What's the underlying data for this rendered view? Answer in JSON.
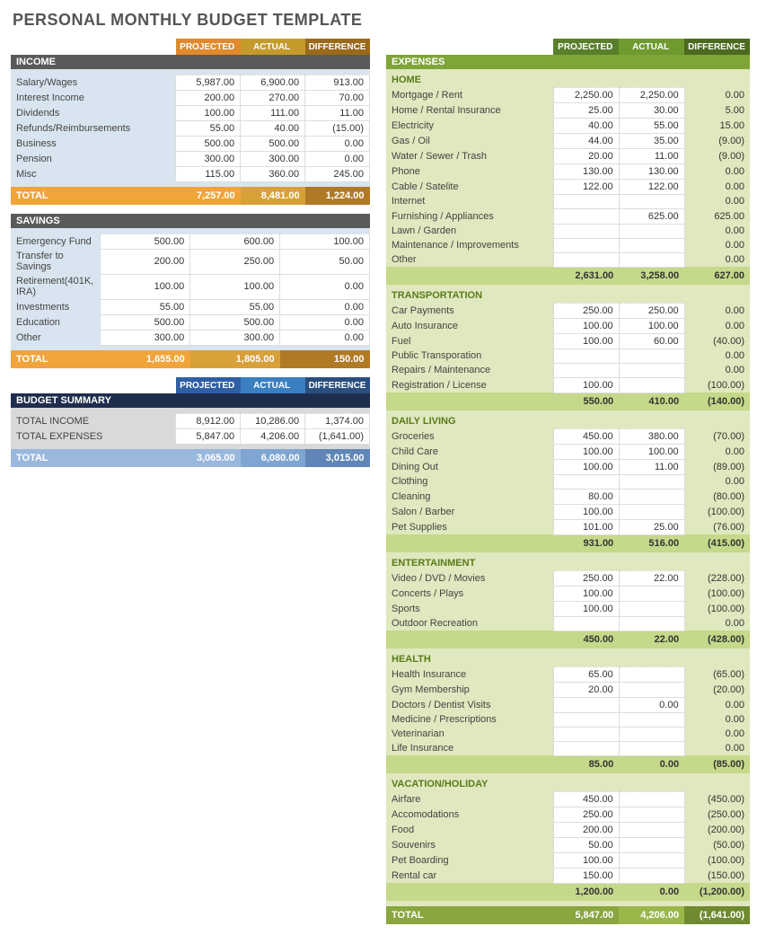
{
  "title": "PERSONAL MONTHLY BUDGET TEMPLATE",
  "headers": {
    "projected": "PROJECTED",
    "actual": "ACTUAL",
    "difference": "DIFFERENCE"
  },
  "totalLabel": "TOTAL",
  "colors": {
    "income_hdr": [
      "#e08a2c",
      "#c49a2a",
      "#9a6a1a"
    ],
    "income_bar": "#5a5a5a",
    "income_body": "#d8e4ef",
    "income_total": [
      "#f0a43a",
      "#d8a038",
      "#b07a25"
    ],
    "savings_bar": "#5a5a5a",
    "savings_body": "#d8e4ef",
    "savings_total": [
      "#f0a43a",
      "#d8a038",
      "#b07a25"
    ],
    "summary_hdr": [
      "#2f5fa3",
      "#3a7fbf",
      "#2a4f7f"
    ],
    "summary_bar": "#1f2d4d",
    "summary_body": "#d9d9d9",
    "summary_total": [
      "#9ab7dd",
      "#7fa6d2",
      "#5f86b6"
    ],
    "exp_hdr": [
      "#5a7f2a",
      "#6f9a2f",
      "#4a6a1f"
    ],
    "exp_bar": "#7fa437",
    "exp_body": "#dfe8be",
    "exp_subtotal": "#c5d98a",
    "exp_total": [
      "#8aa63f",
      "#9ab74a",
      "#6f8a2f"
    ]
  },
  "income": {
    "name": "INCOME",
    "rows": [
      {
        "label": "Salary/Wages",
        "p": 5987,
        "a": 6900,
        "d": 913
      },
      {
        "label": "Interest Income",
        "p": 200,
        "a": 270,
        "d": 70
      },
      {
        "label": "Dividends",
        "p": 100,
        "a": 111,
        "d": 11
      },
      {
        "label": "Refunds/Reimbursements",
        "p": 55,
        "a": 40,
        "d": -15
      },
      {
        "label": "Business",
        "p": 500,
        "a": 500,
        "d": 0
      },
      {
        "label": "Pension",
        "p": 300,
        "a": 300,
        "d": 0
      },
      {
        "label": "Misc",
        "p": 115,
        "a": 360,
        "d": 245
      }
    ],
    "total": {
      "p": 7257,
      "a": 8481,
      "d": 1224
    }
  },
  "savings": {
    "name": "SAVINGS",
    "rows": [
      {
        "label": "Emergency Fund",
        "p": 500,
        "a": 600,
        "d": 100
      },
      {
        "label": "Transfer to Savings",
        "p": 200,
        "a": 250,
        "d": 50
      },
      {
        "label": "Retirement(401K, IRA)",
        "p": 100,
        "a": 100,
        "d": 0
      },
      {
        "label": "Investments",
        "p": 55,
        "a": 55,
        "d": 0
      },
      {
        "label": "Education",
        "p": 500,
        "a": 500,
        "d": 0
      },
      {
        "label": "Other",
        "p": 300,
        "a": 300,
        "d": 0
      }
    ],
    "total": {
      "p": 1655,
      "a": 1805,
      "d": 150
    }
  },
  "summary": {
    "name": "BUDGET SUMMARY",
    "rows": [
      {
        "label": "TOTAL INCOME",
        "p": 8912,
        "a": 10286,
        "d": 1374
      },
      {
        "label": "TOTAL EXPENSES",
        "p": 5847,
        "a": 4206,
        "d": -1641
      }
    ],
    "total": {
      "p": 3065,
      "a": 6080,
      "d": 3015
    }
  },
  "expenses": {
    "name": "EXPENSES",
    "groups": [
      {
        "name": "HOME",
        "rows": [
          {
            "label": "Mortgage / Rent",
            "p": 2250,
            "a": 2250,
            "d": 0
          },
          {
            "label": "Home / Rental Insurance",
            "p": 25,
            "a": 30,
            "d": 5
          },
          {
            "label": "Electricity",
            "p": 40,
            "a": 55,
            "d": 15
          },
          {
            "label": "Gas / Oil",
            "p": 44,
            "a": 35,
            "d": -9
          },
          {
            "label": "Water / Sewer / Trash",
            "p": 20,
            "a": 11,
            "d": -9
          },
          {
            "label": "Phone",
            "p": 130,
            "a": 130,
            "d": 0
          },
          {
            "label": "Cable / Satelite",
            "p": 122,
            "a": 122,
            "d": 0
          },
          {
            "label": "Internet",
            "p": null,
            "a": null,
            "d": 0
          },
          {
            "label": "Furnishing / Appliances",
            "p": null,
            "a": 625,
            "d": 625
          },
          {
            "label": "Lawn / Garden",
            "p": null,
            "a": null,
            "d": 0
          },
          {
            "label": "Maintenance / Improvements",
            "p": null,
            "a": null,
            "d": 0
          },
          {
            "label": "Other",
            "p": null,
            "a": null,
            "d": 0
          }
        ],
        "subtotal": {
          "p": 2631,
          "a": 3258,
          "d": 627
        }
      },
      {
        "name": "TRANSPORTATION",
        "rows": [
          {
            "label": "Car Payments",
            "p": 250,
            "a": 250,
            "d": 0
          },
          {
            "label": "Auto Insurance",
            "p": 100,
            "a": 100,
            "d": 0
          },
          {
            "label": "Fuel",
            "p": 100,
            "a": 60,
            "d": -40
          },
          {
            "label": "Public Transporation",
            "p": null,
            "a": null,
            "d": 0
          },
          {
            "label": "Repairs / Maintenance",
            "p": null,
            "a": null,
            "d": 0
          },
          {
            "label": "Registration / License",
            "p": 100,
            "a": null,
            "d": -100
          }
        ],
        "subtotal": {
          "p": 550,
          "a": 410,
          "d": -140
        }
      },
      {
        "name": "DAILY LIVING",
        "rows": [
          {
            "label": "Groceries",
            "p": 450,
            "a": 380,
            "d": -70
          },
          {
            "label": "Child Care",
            "p": 100,
            "a": 100,
            "d": 0
          },
          {
            "label": "Dining Out",
            "p": 100,
            "a": 11,
            "d": -89
          },
          {
            "label": "Clothing",
            "p": null,
            "a": null,
            "d": 0
          },
          {
            "label": "Cleaning",
            "p": 80,
            "a": null,
            "d": -80
          },
          {
            "label": "Salon / Barber",
            "p": 100,
            "a": null,
            "d": -100
          },
          {
            "label": "Pet Supplies",
            "p": 101,
            "a": 25,
            "d": -76
          }
        ],
        "subtotal": {
          "p": 931,
          "a": 516,
          "d": -415
        }
      },
      {
        "name": "ENTERTAINMENT",
        "rows": [
          {
            "label": "Video / DVD / Movies",
            "p": 250,
            "a": 22,
            "d": -228
          },
          {
            "label": "Concerts / Plays",
            "p": 100,
            "a": null,
            "d": -100
          },
          {
            "label": "Sports",
            "p": 100,
            "a": null,
            "d": -100
          },
          {
            "label": "Outdoor Recreation",
            "p": null,
            "a": null,
            "d": 0
          }
        ],
        "subtotal": {
          "p": 450,
          "a": 22,
          "d": -428
        }
      },
      {
        "name": "HEALTH",
        "rows": [
          {
            "label": "Health Insurance",
            "p": 65,
            "a": null,
            "d": -65
          },
          {
            "label": "Gym Membership",
            "p": 20,
            "a": null,
            "d": -20
          },
          {
            "label": "Doctors / Dentist Visits",
            "p": null,
            "a": 0,
            "d": 0
          },
          {
            "label": "Medicine / Prescriptions",
            "p": null,
            "a": null,
            "d": 0
          },
          {
            "label": "Veterinarian",
            "p": null,
            "a": null,
            "d": 0
          },
          {
            "label": "Life Insurance",
            "p": null,
            "a": null,
            "d": 0
          }
        ],
        "subtotal": {
          "p": 85,
          "a": 0,
          "d": -85
        }
      },
      {
        "name": "VACATION/HOLIDAY",
        "rows": [
          {
            "label": "Airfare",
            "p": 450,
            "a": null,
            "d": -450
          },
          {
            "label": "Accomodations",
            "p": 250,
            "a": null,
            "d": -250
          },
          {
            "label": "Food",
            "p": 200,
            "a": null,
            "d": -200
          },
          {
            "label": "Souvenirs",
            "p": 50,
            "a": null,
            "d": -50
          },
          {
            "label": "Pet Boarding",
            "p": 100,
            "a": null,
            "d": -100
          },
          {
            "label": "Rental car",
            "p": 150,
            "a": null,
            "d": -150
          }
        ],
        "subtotal": {
          "p": 1200,
          "a": 0,
          "d": -1200
        }
      }
    ],
    "total": {
      "p": 5847,
      "a": 4206,
      "d": -1641
    }
  }
}
